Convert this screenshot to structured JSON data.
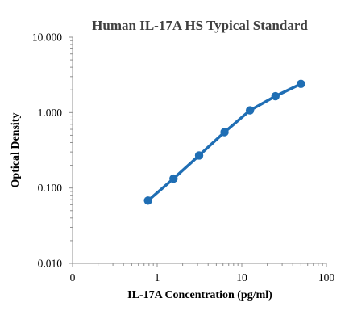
{
  "chart_data": {
    "type": "line",
    "title": "Human IL-17A HS Typical Standard",
    "xlabel": "IL-17A Concentration (pg/ml)",
    "ylabel": "Optical Density",
    "xscale": "log",
    "yscale": "log",
    "xlim": [
      0.1,
      100
    ],
    "ylim": [
      0.01,
      10
    ],
    "x_tick_labels": [
      "0",
      "1",
      "10",
      "100"
    ],
    "y_tick_labels": [
      "0.010",
      "0.100",
      "1.000",
      "10.000"
    ],
    "grid": false,
    "legend": "none",
    "series": [
      {
        "color": "#1f6eb4",
        "x": [
          0.78,
          1.56,
          3.13,
          6.25,
          12.5,
          25,
          50
        ],
        "y": [
          0.068,
          0.133,
          0.27,
          0.55,
          1.07,
          1.65,
          2.4
        ]
      }
    ]
  }
}
